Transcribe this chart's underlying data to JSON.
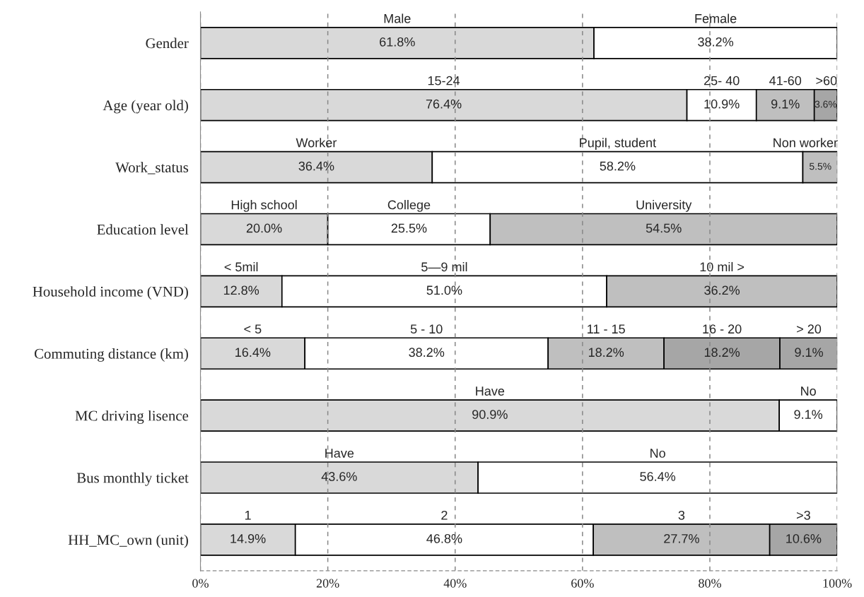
{
  "chart_data": {
    "type": "bar",
    "orientation": "horizontal",
    "stacked": true,
    "categories": [
      "Gender",
      "Age (year old)",
      "Work_status",
      "Education level",
      "Household income (VND)",
      "Commuting distance (km)",
      "MC driving lisence",
      "Bus monthly ticket",
      "HH_MC_own (unit)"
    ],
    "series": [
      {
        "color": "#d9d9d9",
        "values": [
          61.8,
          76.4,
          36.4,
          20.0,
          12.8,
          16.4,
          90.9,
          43.6,
          14.9
        ],
        "value_labels": [
          "61.8%",
          "76.4%",
          "36.4%",
          "20.0%",
          "12.8%",
          "16.4%",
          "90.9%",
          "43.6%",
          "14.9%"
        ]
      },
      {
        "color": "#ffffff",
        "values": [
          38.2,
          10.9,
          58.2,
          25.5,
          51.0,
          38.2,
          9.1,
          56.4,
          46.8
        ],
        "value_labels": [
          "38.2%",
          "10.9%",
          "58.2%",
          "25.5%",
          "51.0%",
          "38.2%",
          "9.1%",
          "56.4%",
          "46.8%"
        ]
      },
      {
        "color": "#bfbfbf",
        "values": [
          null,
          9.1,
          5.5,
          54.5,
          36.2,
          18.2,
          null,
          null,
          27.7
        ],
        "value_labels": [
          null,
          "9.1%",
          "5.5%",
          "54.5%",
          "36.2%",
          "18.2%",
          null,
          null,
          "27.7%"
        ]
      },
      {
        "color": "#a6a6a6",
        "values": [
          null,
          3.6,
          null,
          null,
          null,
          18.2,
          null,
          null,
          10.6
        ],
        "value_labels": [
          null,
          "3.6%",
          null,
          null,
          null,
          "18.2%",
          null,
          null,
          "10.6%"
        ]
      },
      {
        "color": "#a6a6a6",
        "values": [
          null,
          null,
          null,
          null,
          null,
          9.1,
          null,
          null,
          null
        ],
        "value_labels": [
          null,
          null,
          null,
          null,
          null,
          "9.1%",
          null,
          null,
          null
        ]
      }
    ],
    "xlim": [
      0,
      100
    ],
    "xticks": [
      {
        "value": 0,
        "label": "0%"
      },
      {
        "value": 20,
        "label": "20%"
      },
      {
        "value": 40,
        "label": "40%"
      },
      {
        "value": 60,
        "label": "60%"
      },
      {
        "value": 80,
        "label": "80%"
      },
      {
        "value": 100,
        "label": "100%"
      }
    ],
    "grid": "x",
    "annotations": [
      "Male",
      "Female",
      "15-24",
      "25- 40",
      "41-60",
      ">60",
      "Worker",
      "Pupil, student",
      "Non worker",
      "High school",
      "College",
      "University",
      "< 5mil",
      "5—9 mil",
      "10 mil >",
      "< 5",
      "5 - 10",
      "11 - 15",
      "16 - 20",
      "> 20",
      "Have",
      "No",
      "Have",
      "No",
      "1",
      "2",
      "3",
      ">3"
    ]
  }
}
